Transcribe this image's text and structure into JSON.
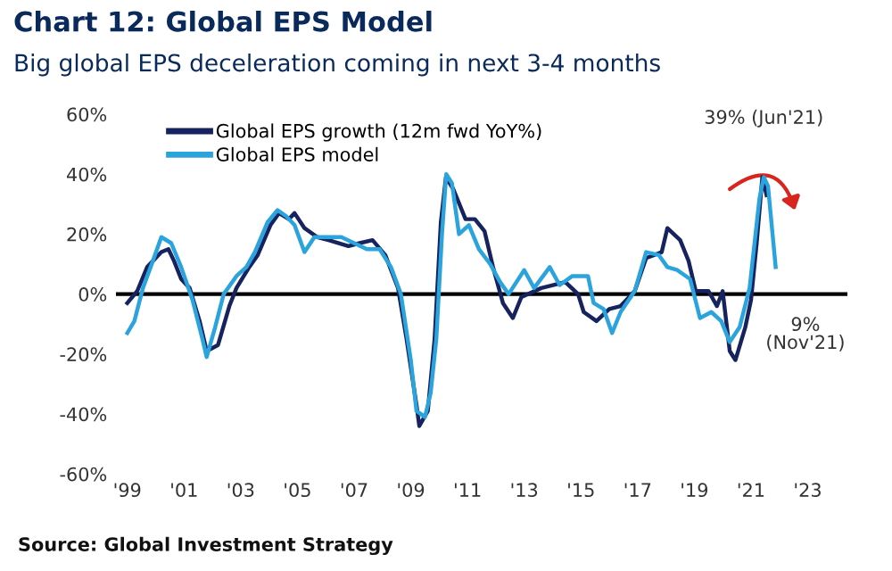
{
  "chart_data": {
    "type": "line",
    "title": "Chart 12: Global EPS Model",
    "subtitle": "Big global EPS deceleration coming in next 3-4 months",
    "series": [
      {
        "name": "Global EPS growth (12m fwd YoY%)",
        "color": "#16235e",
        "x": [
          1999.0,
          1999.35,
          1999.7,
          2000.2,
          2000.45,
          2000.65,
          2000.9,
          2001.2,
          2001.55,
          2001.8,
          2002.2,
          2002.6,
          2002.85,
          2003.3,
          2003.6,
          2004.05,
          2004.35,
          2004.7,
          2004.9,
          2005.25,
          2005.7,
          2006.1,
          2006.8,
          2007.2,
          2007.65,
          2008.1,
          2008.55,
          2008.85,
          2009.2,
          2009.3,
          2009.6,
          2009.84,
          2010.06,
          2010.24,
          2010.5,
          2010.93,
          2011.26,
          2011.6,
          2011.9,
          2012.25,
          2012.6,
          2012.9,
          2013.6,
          2014.45,
          2014.9,
          2015.1,
          2015.55,
          2016.0,
          2016.4,
          2016.9,
          2017.3,
          2017.85,
          2018.05,
          2018.5,
          2018.8,
          2019.05,
          2019.5,
          2019.8,
          2020.0,
          2020.25,
          2020.45,
          2020.8,
          2021.0,
          2021.2,
          2021.4,
          2021.55
        ],
        "values": [
          -3,
          1,
          9,
          14,
          15,
          11,
          5,
          2,
          -9,
          -19,
          -17,
          -4,
          2,
          9,
          13,
          23,
          27,
          25,
          27,
          22,
          19,
          18,
          16,
          17,
          18,
          13,
          2,
          -15,
          -37,
          -44,
          -39,
          -15,
          24,
          39,
          35,
          25,
          25,
          21,
          9,
          -3,
          -8,
          -1,
          2,
          4,
          0,
          -6,
          -9,
          -5,
          -4,
          1,
          12,
          14,
          22,
          18,
          11,
          1,
          1,
          -4,
          1,
          -19,
          -22,
          -11,
          -2,
          17,
          39,
          33
        ]
      },
      {
        "name": "Global EPS model",
        "color": "#2ba3dc",
        "x": [
          1999.0,
          1999.25,
          1999.55,
          1999.9,
          2000.2,
          2000.55,
          2000.9,
          2001.3,
          2001.65,
          2001.8,
          2002.1,
          2002.4,
          2002.85,
          2003.2,
          2003.5,
          2003.95,
          2004.3,
          2004.6,
          2004.9,
          2005.25,
          2005.6,
          2006.1,
          2006.55,
          2007.0,
          2007.45,
          2007.9,
          2008.3,
          2008.65,
          2009.0,
          2009.2,
          2009.5,
          2009.7,
          2009.9,
          2010.1,
          2010.25,
          2010.45,
          2010.7,
          2011.05,
          2011.4,
          2011.8,
          2012.15,
          2012.45,
          2013.0,
          2013.35,
          2013.9,
          2014.25,
          2014.7,
          2015.25,
          2015.45,
          2015.8,
          2016.1,
          2016.4,
          2016.9,
          2017.3,
          2017.75,
          2018.05,
          2018.4,
          2018.85,
          2019.2,
          2019.6,
          2019.95,
          2020.25,
          2020.6,
          2020.95,
          2021.3,
          2021.45,
          2021.6,
          2021.87
        ],
        "values": [
          -13,
          -9,
          2,
          11,
          19,
          17,
          9,
          -2,
          -15,
          -21,
          -11,
          0,
          6,
          9,
          14,
          24,
          28,
          26,
          23,
          14,
          19,
          19,
          19,
          17,
          15,
          15,
          9,
          0,
          -22,
          -39,
          -41,
          -33,
          -15,
          20,
          40,
          37,
          20,
          23,
          15,
          10,
          4,
          0,
          8,
          2,
          9,
          3,
          6,
          6,
          -3,
          -5,
          -13,
          -6,
          1,
          14,
          13,
          9,
          8,
          5,
          -8,
          -6,
          -9,
          -16,
          -11,
          2,
          32,
          39,
          36,
          9
        ]
      }
    ],
    "xlim": [
      1998.6,
      2024.4
    ],
    "xticks": [
      {
        "value": 1999,
        "label": "'99"
      },
      {
        "value": 2001,
        "label": "'01"
      },
      {
        "value": 2003,
        "label": "'03"
      },
      {
        "value": 2005,
        "label": "'05"
      },
      {
        "value": 2007,
        "label": "'07"
      },
      {
        "value": 2009,
        "label": "'09"
      },
      {
        "value": 2011,
        "label": "'11"
      },
      {
        "value": 2013,
        "label": "'13"
      },
      {
        "value": 2015,
        "label": "'15"
      },
      {
        "value": 2017,
        "label": "'17"
      },
      {
        "value": 2019,
        "label": "'19"
      },
      {
        "value": 2021,
        "label": "'21"
      },
      {
        "value": 2023,
        "label": "'23"
      }
    ],
    "ylim": [
      -60,
      60
    ],
    "yticks": [
      {
        "value": -60,
        "label": "-60%"
      },
      {
        "value": -40,
        "label": "-40%"
      },
      {
        "value": -20,
        "label": "-20%"
      },
      {
        "value": 0,
        "label": "0%"
      },
      {
        "value": 20,
        "label": "20%"
      },
      {
        "value": 40,
        "label": "40%"
      },
      {
        "value": 60,
        "label": "60%"
      }
    ],
    "ref_lines": [
      {
        "axis": "y",
        "value": 0,
        "color": "#000000"
      }
    ],
    "annotations": [
      {
        "text": "39% (Jun'21)",
        "x": 2021.45,
        "y": 39
      },
      {
        "text": "9%\n(Nov'21)",
        "x": 2021.87,
        "y": 9
      },
      "Source: Global Investment Strategy"
    ],
    "legend": "top left",
    "grid": false,
    "line_style": "solid",
    "marker": "none"
  }
}
